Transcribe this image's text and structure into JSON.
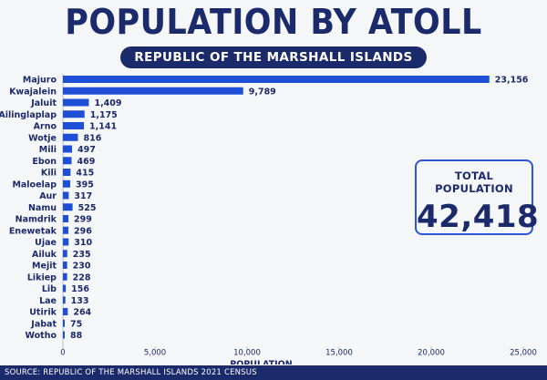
{
  "title": "POPULATION BY ATOLL",
  "subtitle": "REPUBLIC OF THE MARSHALL ISLANDS",
  "total": {
    "label": "TOTAL POPULATION",
    "value": "42,418"
  },
  "source": "SOURCE: REPUBLIC OF THE MARSHALL ISLANDS 2021 CENSUS",
  "colors": {
    "bar": "#1f4fd6",
    "text": "#1b2a6b",
    "background": "#f5f6f8"
  },
  "chart_data": {
    "type": "bar",
    "orientation": "horizontal",
    "categories": [
      "Majuro",
      "Kwajalein",
      "Jaluit",
      "Ailinglaplap",
      "Arno",
      "Wotje",
      "Mili",
      "Ebon",
      "Kili",
      "Maloelap",
      "Aur",
      "Namu",
      "Namdrik",
      "Enewetak",
      "Ujae",
      "Ailuk",
      "Mejit",
      "Likiep",
      "Lib",
      "Lae",
      "Utirik",
      "Jabat",
      "Wotho"
    ],
    "values": [
      23156,
      9789,
      1409,
      1175,
      1141,
      816,
      497,
      469,
      415,
      395,
      317,
      525,
      299,
      296,
      310,
      235,
      230,
      228,
      156,
      133,
      264,
      75,
      88
    ],
    "value_labels": [
      "23,156",
      "9,789",
      "1,409",
      "1,175",
      "1,141",
      "816",
      "497",
      "469",
      "415",
      "395",
      "317",
      "525",
      "299",
      "296",
      "310",
      "235",
      "230",
      "228",
      "156",
      "133",
      "264",
      "75",
      "88"
    ],
    "xlabel": "POPULATION",
    "xlim": [
      0,
      25000
    ],
    "xticks": [
      0,
      5000,
      10000,
      15000,
      20000,
      25000
    ],
    "xtick_labels": [
      "0",
      "5,000",
      "10,000",
      "15,000",
      "20,000",
      "25,000"
    ],
    "grid": false
  }
}
